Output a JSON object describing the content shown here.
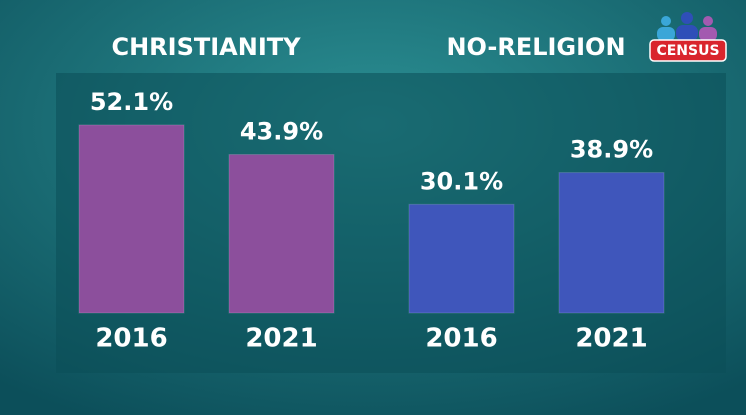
{
  "logo": "CENSUS",
  "chart_data": [
    {
      "type": "bar",
      "title": "CHRISTIANITY",
      "categories": [
        "2016",
        "2021"
      ],
      "values": [
        52.1,
        43.9
      ],
      "value_labels": [
        "52.1%",
        "43.9%"
      ],
      "color": "#8c4f9c"
    },
    {
      "type": "bar",
      "title": "NO-RELIGION",
      "categories": [
        "2016",
        "2021"
      ],
      "values": [
        30.1,
        38.9
      ],
      "value_labels": [
        "30.1%",
        "38.9%"
      ],
      "color": "#3f56bb"
    }
  ]
}
